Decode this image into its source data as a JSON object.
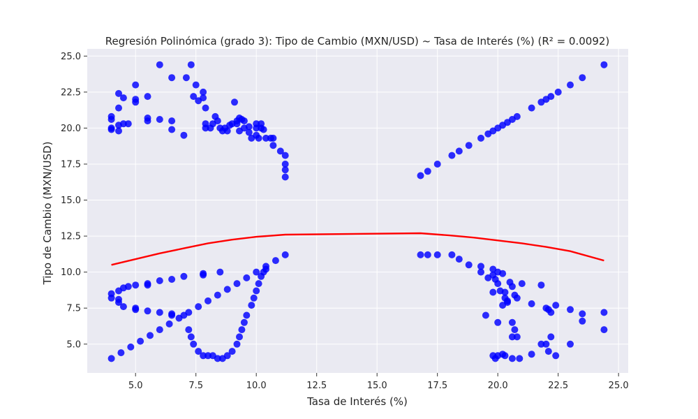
{
  "chart_data": {
    "type": "scatter",
    "title": "Regresión Polinómica (grado 3): Tipo de Cambio (MXN/USD) ~ Tasa de Interés (%) (R² = 0.0092)",
    "xlabel": "Tasa de Interés (%)",
    "ylabel": "Tipo de Cambio (MXN/USD)",
    "xlim": [
      3.0,
      25.4
    ],
    "ylim": [
      3.0,
      25.5
    ],
    "x_ticks": [
      5.0,
      7.5,
      10.0,
      12.5,
      15.0,
      17.5,
      20.0,
      22.5,
      25.0
    ],
    "x_tick_labels": [
      "5.0",
      "7.5",
      "10.0",
      "12.5",
      "15.0",
      "17.5",
      "20.0",
      "22.5",
      "25.0"
    ],
    "y_ticks": [
      5.0,
      7.5,
      10.0,
      12.5,
      15.0,
      17.5,
      20.0,
      22.5,
      25.0
    ],
    "y_tick_labels": [
      "5.0",
      "7.5",
      "10.0",
      "12.5",
      "15.0",
      "17.5",
      "20.0",
      "22.5",
      "25.0"
    ],
    "grid": true,
    "style": {
      "background": "#eaeaf2",
      "grid_color": "#ffffff",
      "point_color": "#0000ff",
      "line_color": "#ff0000"
    },
    "series": [
      {
        "kind": "scatter",
        "points": [
          [
            4.0,
            20.8
          ],
          [
            4.0,
            20.6
          ],
          [
            4.0,
            20.0
          ],
          [
            4.0,
            19.9
          ],
          [
            4.3,
            22.4
          ],
          [
            4.3,
            21.4
          ],
          [
            4.3,
            20.2
          ],
          [
            4.3,
            19.8
          ],
          [
            4.5,
            22.1
          ],
          [
            4.5,
            20.3
          ],
          [
            4.7,
            20.3
          ],
          [
            5.0,
            23.0
          ],
          [
            5.0,
            22.0
          ],
          [
            5.0,
            21.8
          ],
          [
            5.5,
            22.2
          ],
          [
            5.5,
            20.7
          ],
          [
            5.5,
            20.5
          ],
          [
            6.0,
            24.4
          ],
          [
            6.0,
            20.6
          ],
          [
            6.5,
            23.5
          ],
          [
            6.5,
            20.5
          ],
          [
            6.5,
            19.9
          ],
          [
            7.0,
            19.5
          ],
          [
            7.1,
            23.5
          ],
          [
            7.3,
            24.4
          ],
          [
            7.4,
            22.2
          ],
          [
            7.5,
            23.0
          ],
          [
            7.6,
            21.9
          ],
          [
            7.8,
            22.5
          ],
          [
            7.8,
            22.1
          ],
          [
            7.9,
            21.4
          ],
          [
            7.9,
            20.3
          ],
          [
            7.9,
            20.0
          ],
          [
            8.1,
            20.0
          ],
          [
            8.2,
            20.3
          ],
          [
            8.3,
            20.8
          ],
          [
            8.4,
            20.5
          ],
          [
            8.5,
            20.0
          ],
          [
            8.6,
            19.8
          ],
          [
            8.7,
            20.0
          ],
          [
            8.8,
            19.8
          ],
          [
            8.9,
            20.2
          ],
          [
            9.0,
            20.3
          ],
          [
            9.2,
            20.3
          ],
          [
            9.1,
            21.8
          ],
          [
            9.2,
            20.5
          ],
          [
            9.3,
            20.7
          ],
          [
            9.3,
            19.8
          ],
          [
            9.4,
            20.6
          ],
          [
            9.5,
            20.5
          ],
          [
            9.5,
            20.0
          ],
          [
            9.7,
            20.1
          ],
          [
            9.7,
            19.7
          ],
          [
            9.8,
            19.3
          ],
          [
            10.0,
            20.3
          ],
          [
            10.0,
            20.0
          ],
          [
            10.0,
            19.5
          ],
          [
            10.1,
            19.3
          ],
          [
            10.2,
            20.3
          ],
          [
            10.2,
            20.0
          ],
          [
            10.3,
            19.9
          ],
          [
            10.4,
            19.3
          ],
          [
            10.6,
            19.3
          ],
          [
            10.7,
            19.3
          ],
          [
            10.7,
            18.8
          ],
          [
            11.0,
            18.4
          ],
          [
            11.2,
            18.1
          ],
          [
            11.2,
            17.5
          ],
          [
            11.2,
            17.1
          ],
          [
            11.2,
            16.6
          ],
          [
            4.0,
            8.5
          ],
          [
            4.0,
            8.2
          ],
          [
            4.3,
            8.7
          ],
          [
            4.3,
            8.1
          ],
          [
            4.3,
            7.9
          ],
          [
            4.5,
            8.9
          ],
          [
            4.5,
            7.6
          ],
          [
            4.7,
            9.0
          ],
          [
            5.0,
            9.1
          ],
          [
            5.0,
            7.5
          ],
          [
            5.0,
            7.4
          ],
          [
            5.5,
            9.2
          ],
          [
            5.5,
            9.1
          ],
          [
            5.5,
            7.3
          ],
          [
            6.0,
            9.4
          ],
          [
            6.0,
            7.2
          ],
          [
            6.5,
            9.5
          ],
          [
            6.5,
            7.1
          ],
          [
            7.0,
            9.7
          ],
          [
            7.8,
            9.9
          ],
          [
            7.8,
            9.8
          ],
          [
            8.5,
            10.0
          ],
          [
            4.0,
            4.0
          ],
          [
            4.4,
            4.4
          ],
          [
            4.8,
            4.8
          ],
          [
            5.2,
            5.2
          ],
          [
            5.6,
            5.6
          ],
          [
            6.0,
            6.0
          ],
          [
            6.4,
            6.4
          ],
          [
            6.8,
            6.8
          ],
          [
            7.2,
            7.2
          ],
          [
            7.6,
            7.6
          ],
          [
            8.0,
            8.0
          ],
          [
            8.4,
            8.4
          ],
          [
            8.8,
            8.8
          ],
          [
            9.2,
            9.2
          ],
          [
            9.6,
            9.6
          ],
          [
            10.0,
            10.0
          ],
          [
            10.4,
            10.4
          ],
          [
            10.8,
            10.8
          ],
          [
            11.2,
            11.2
          ],
          [
            6.5,
            7.0
          ],
          [
            7.0,
            7.0
          ],
          [
            7.2,
            6.0
          ],
          [
            7.3,
            5.5
          ],
          [
            7.4,
            5.0
          ],
          [
            7.6,
            4.5
          ],
          [
            7.8,
            4.2
          ],
          [
            8.0,
            4.2
          ],
          [
            8.2,
            4.2
          ],
          [
            8.4,
            4.0
          ],
          [
            8.6,
            4.0
          ],
          [
            8.8,
            4.2
          ],
          [
            9.0,
            4.5
          ],
          [
            9.2,
            5.0
          ],
          [
            9.3,
            5.5
          ],
          [
            9.4,
            6.0
          ],
          [
            9.5,
            6.5
          ],
          [
            9.6,
            7.0
          ],
          [
            9.8,
            7.7
          ],
          [
            9.9,
            8.2
          ],
          [
            10.0,
            8.7
          ],
          [
            10.1,
            9.2
          ],
          [
            10.2,
            9.7
          ],
          [
            10.3,
            10.0
          ],
          [
            10.4,
            10.2
          ],
          [
            16.8,
            16.7
          ],
          [
            17.1,
            17.0
          ],
          [
            17.5,
            17.5
          ],
          [
            18.1,
            18.1
          ],
          [
            18.4,
            18.4
          ],
          [
            18.8,
            18.8
          ],
          [
            19.3,
            19.3
          ],
          [
            19.6,
            19.6
          ],
          [
            19.8,
            19.8
          ],
          [
            20.0,
            20.0
          ],
          [
            20.2,
            20.2
          ],
          [
            20.4,
            20.4
          ],
          [
            20.6,
            20.6
          ],
          [
            20.8,
            20.8
          ],
          [
            21.4,
            21.4
          ],
          [
            21.8,
            21.8
          ],
          [
            22.0,
            22.0
          ],
          [
            22.2,
            22.2
          ],
          [
            22.5,
            22.5
          ],
          [
            23.0,
            23.0
          ],
          [
            23.5,
            23.5
          ],
          [
            24.4,
            24.4
          ],
          [
            16.8,
            11.2
          ],
          [
            17.1,
            11.2
          ],
          [
            17.5,
            11.2
          ],
          [
            18.1,
            11.2
          ],
          [
            18.4,
            10.9
          ],
          [
            18.8,
            10.5
          ],
          [
            19.3,
            10.4
          ],
          [
            19.3,
            10.0
          ],
          [
            19.6,
            9.6
          ],
          [
            19.8,
            10.2
          ],
          [
            19.8,
            9.8
          ],
          [
            19.9,
            9.5
          ],
          [
            20.0,
            9.2
          ],
          [
            20.0,
            10.0
          ],
          [
            20.1,
            8.7
          ],
          [
            20.2,
            9.9
          ],
          [
            20.3,
            8.6
          ],
          [
            20.3,
            8.2
          ],
          [
            20.4,
            7.9
          ],
          [
            20.5,
            9.3
          ],
          [
            20.6,
            9.0
          ],
          [
            20.7,
            8.4
          ],
          [
            20.8,
            8.2
          ],
          [
            21.0,
            9.2
          ],
          [
            21.4,
            7.8
          ],
          [
            21.8,
            9.1
          ],
          [
            22.0,
            7.5
          ],
          [
            22.1,
            7.4
          ],
          [
            22.2,
            7.2
          ],
          [
            22.4,
            7.7
          ],
          [
            23.0,
            7.4
          ],
          [
            23.5,
            7.1
          ],
          [
            23.5,
            6.6
          ],
          [
            24.4,
            7.2
          ],
          [
            24.4,
            6.0
          ],
          [
            19.5,
            7.0
          ],
          [
            19.8,
            8.6
          ],
          [
            20.0,
            6.5
          ],
          [
            20.2,
            7.7
          ],
          [
            20.4,
            8.0
          ],
          [
            20.6,
            6.5
          ],
          [
            20.7,
            6.0
          ],
          [
            20.8,
            5.5
          ],
          [
            20.6,
            5.5
          ],
          [
            20.6,
            4.0
          ],
          [
            20.9,
            4.0
          ],
          [
            19.8,
            4.2
          ],
          [
            19.9,
            4.0
          ],
          [
            20.0,
            4.2
          ],
          [
            20.2,
            4.3
          ],
          [
            20.3,
            4.2
          ],
          [
            21.4,
            4.3
          ],
          [
            21.8,
            5.0
          ],
          [
            22.0,
            5.0
          ],
          [
            22.1,
            4.5
          ],
          [
            22.2,
            5.5
          ],
          [
            22.4,
            4.2
          ],
          [
            23.0,
            5.0
          ]
        ]
      },
      {
        "kind": "fit-line",
        "points": [
          [
            4.0,
            10.5
          ],
          [
            5.0,
            10.9
          ],
          [
            6.0,
            11.3
          ],
          [
            7.0,
            11.65
          ],
          [
            8.0,
            12.0
          ],
          [
            9.0,
            12.25
          ],
          [
            10.0,
            12.45
          ],
          [
            11.2,
            12.6
          ],
          [
            16.8,
            12.7
          ],
          [
            18.0,
            12.55
          ],
          [
            19.0,
            12.4
          ],
          [
            20.0,
            12.2
          ],
          [
            21.0,
            12.0
          ],
          [
            22.0,
            11.75
          ],
          [
            23.0,
            11.45
          ],
          [
            24.4,
            10.8
          ]
        ]
      }
    ]
  }
}
